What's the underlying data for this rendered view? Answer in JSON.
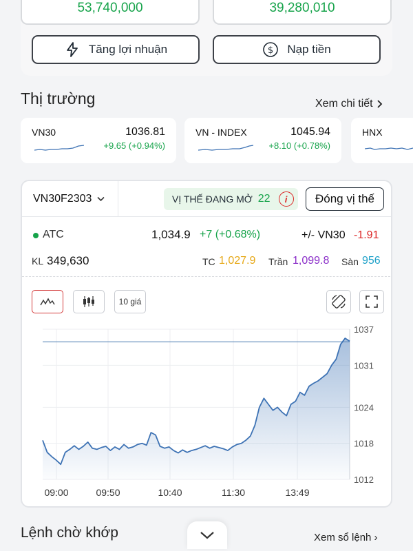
{
  "account": {
    "value_left": "53,740,000",
    "value_right": "39,280,010",
    "btn_boost": "Tăng lợi nhuận",
    "btn_deposit": "Nạp tiền",
    "boost_icon": "lightning-icon",
    "deposit_icon": "dollar-coin-icon"
  },
  "market": {
    "title": "Thị trường",
    "more": "Xem chi tiết",
    "indices": [
      {
        "name": "VN30",
        "value": "1036.81",
        "change": "+9.65 (+0.94%)"
      },
      {
        "name": "VN - INDEX",
        "value": "1045.94",
        "change": "+8.10 (+0.78%)"
      },
      {
        "name": "HNX",
        "value": "",
        "change": ""
      }
    ]
  },
  "panel": {
    "contract": "VN30F2303",
    "position_label": "VỊ THẾ ĐANG MỞ",
    "position_count": "22",
    "info_glyph": "i",
    "close_label": "Đóng vị thế",
    "session": "ATC",
    "price": "1,034.9",
    "price_change": "+7 (+0.68%)",
    "basis_label": "+/- VN30",
    "basis_value": "-1.91",
    "kl_label": "KL",
    "kl_value": "349,630",
    "tc_label": "TC",
    "tc_value": "1,027.9",
    "ceil_label": "Trần",
    "ceil_value": "1,099.8",
    "floor_label": "Sàn",
    "floor_value": "956",
    "tool_10": "10 giá"
  },
  "colors": {
    "up": "#16a34a",
    "down": "#dc2626",
    "ref": "#e6a817",
    "ceil": "#8b2fc9",
    "floor": "#1ea1c9",
    "line": "#3d72b4"
  },
  "chart_data": {
    "type": "area",
    "x_ticks": [
      "09:00",
      "09:50",
      "10:40",
      "11:30",
      "13:49"
    ],
    "y_ticks": [
      "1037",
      "1031",
      "1024",
      "1018",
      "1012"
    ],
    "ylim": [
      1012,
      1037
    ],
    "reference_line": 1034.9,
    "series": [
      {
        "values": [
          1018.5,
          1016.5,
          1015.8,
          1015.2,
          1014.5,
          1016.5,
          1017.0,
          1017.6,
          1017.0,
          1017.5,
          1018.2,
          1017.2,
          1017.0,
          1017.3,
          1017.5,
          1016.8,
          1017.4,
          1017.0,
          1017.8,
          1017.2,
          1017.4,
          1017.8,
          1018.0,
          1017.7,
          1019.8,
          1019.4,
          1017.5,
          1017.2,
          1017.4,
          1016.8,
          1016.4,
          1016.9,
          1016.5,
          1016.8,
          1017.0,
          1017.3,
          1017.6,
          1017.2,
          1017.5,
          1017.3,
          1017.1,
          1016.8,
          1017.4,
          1017.8,
          1018.0,
          1018.5,
          1019.2,
          1021.0,
          1024.0,
          1025.5,
          1024.5,
          1023.5,
          1024.0,
          1023.2,
          1022.6,
          1024.5,
          1025.0,
          1026.5,
          1026.0,
          1027.5,
          1028.0,
          1028.4,
          1029.0,
          1029.6,
          1031.0,
          1032.0,
          1034.5,
          1035.5,
          1035.0
        ]
      }
    ]
  }
}
